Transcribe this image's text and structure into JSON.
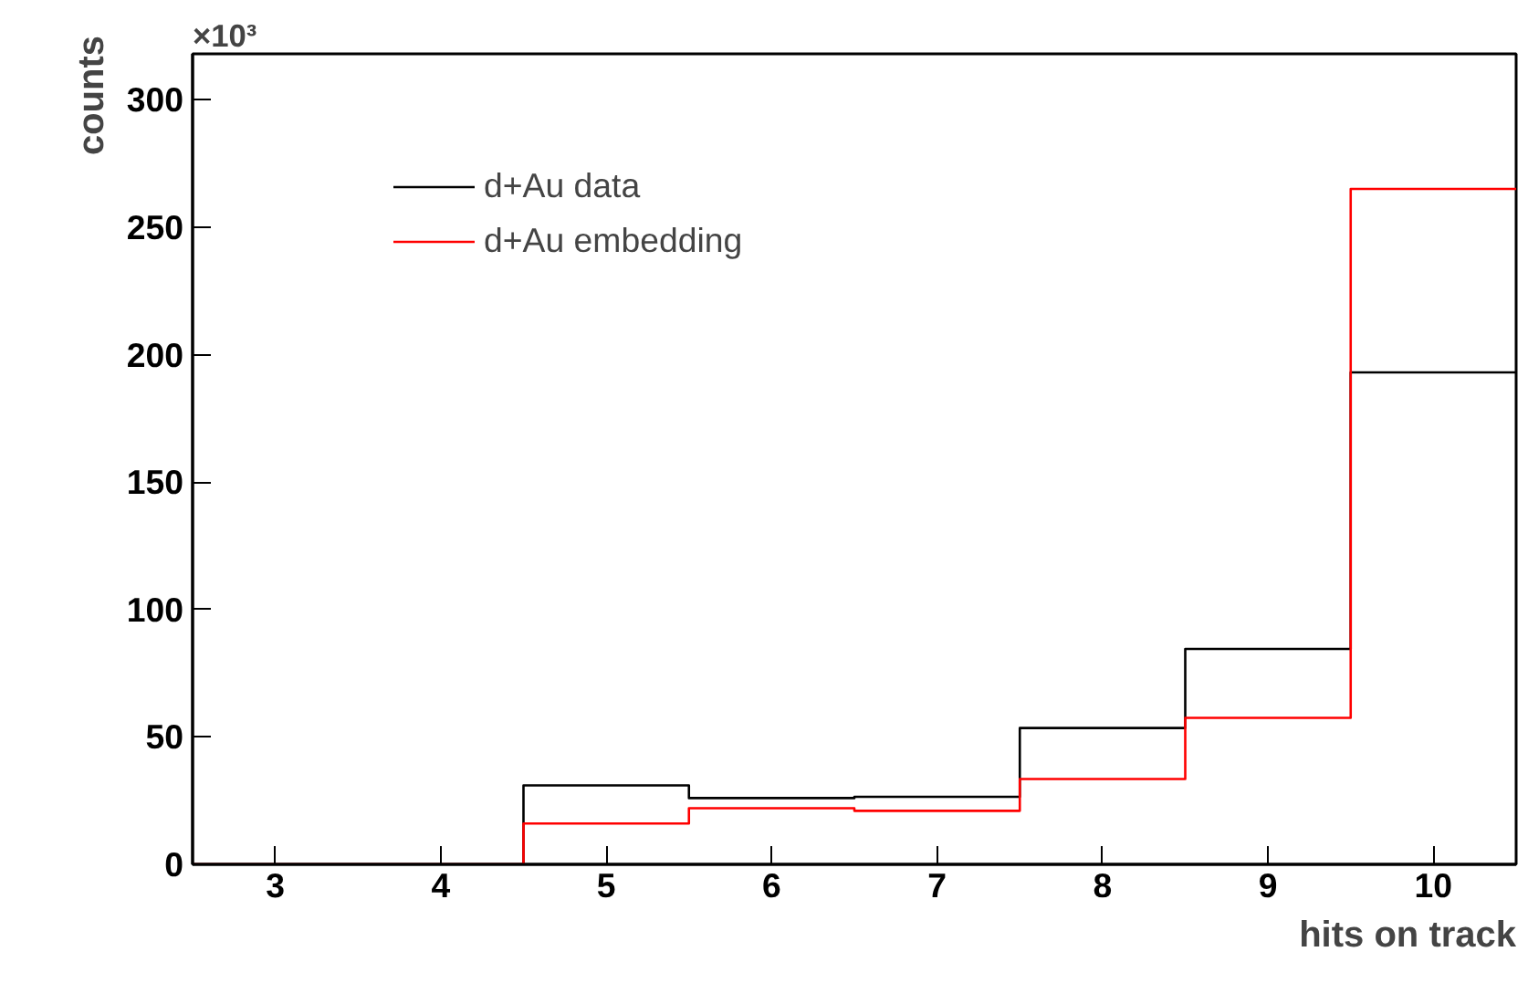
{
  "chart_data": {
    "type": "histogram",
    "xlabel": "hits on track",
    "ylabel": "counts",
    "annotations": [
      "×10³"
    ],
    "bins": [
      2.5,
      3.5,
      4.5,
      5.5,
      6.5,
      7.5,
      8.5,
      9.5,
      10.5
    ],
    "series": [
      {
        "name": "d+Au data",
        "color": "#000000",
        "values": [
          0,
          0,
          31,
          26,
          26.5,
          53.5,
          84.5,
          193
        ]
      },
      {
        "name": "d+Au embedding",
        "color": "#ff0000",
        "values": [
          0,
          0,
          16,
          22,
          21,
          33.5,
          57.5,
          265
        ]
      }
    ],
    "xlim": [
      2.5,
      10.5
    ],
    "ylim": [
      0,
      318
    ],
    "xticks": [
      3,
      4,
      5,
      6,
      7,
      8,
      9,
      10
    ],
    "yticks": [
      0,
      50,
      100,
      150,
      200,
      250,
      300
    ],
    "grid": false,
    "legend": "top left"
  }
}
